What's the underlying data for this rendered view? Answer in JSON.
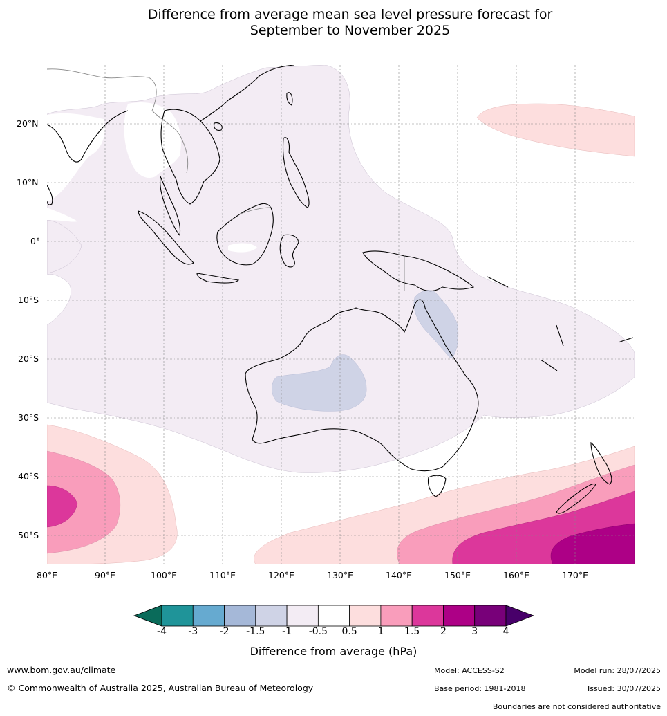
{
  "title": {
    "line1": "Difference from average mean sea level pressure forecast for",
    "line2": "September to November 2025"
  },
  "map": {
    "lat_labels": [
      "20°N",
      "10°N",
      "0°",
      "10°S",
      "20°S",
      "30°S",
      "40°S",
      "50°S"
    ],
    "lon_labels": [
      "80°E",
      "90°E",
      "100°E",
      "110°E",
      "120°E",
      "130°E",
      "140°E",
      "150°E",
      "160°E",
      "170°E"
    ],
    "extent": {
      "lon_min": 80,
      "lon_max": 180,
      "lat_min": -55,
      "lat_max": 30
    }
  },
  "colorbar": {
    "title": "Difference from average (hPa)",
    "ticks": [
      "-4",
      "-3",
      "-2",
      "-1.5",
      "-1",
      "-0.5",
      "0.5",
      "1",
      "1.5",
      "2",
      "3",
      "4"
    ],
    "colors": [
      "#0a6b5a",
      "#1f9499",
      "#66aad0",
      "#a5b8d8",
      "#cfd3e6",
      "#f3ecf4",
      "#ffffff",
      "#fddede",
      "#f99dbb",
      "#dc379b",
      "#ad0086",
      "#780079",
      "#48006a"
    ]
  },
  "footer": {
    "url": "www.bom.gov.au/climate",
    "copyright": "© Commonwealth of Australia 2025, Australian Bureau of Meteorology",
    "model": "Model: ACCESS-S2",
    "base_period": "Base period: 1981-2018",
    "model_run": "Model run: 28/07/2025",
    "issued": "Issued: 30/07/2025",
    "disclaimer": "Boundaries are not considered authoritative"
  }
}
